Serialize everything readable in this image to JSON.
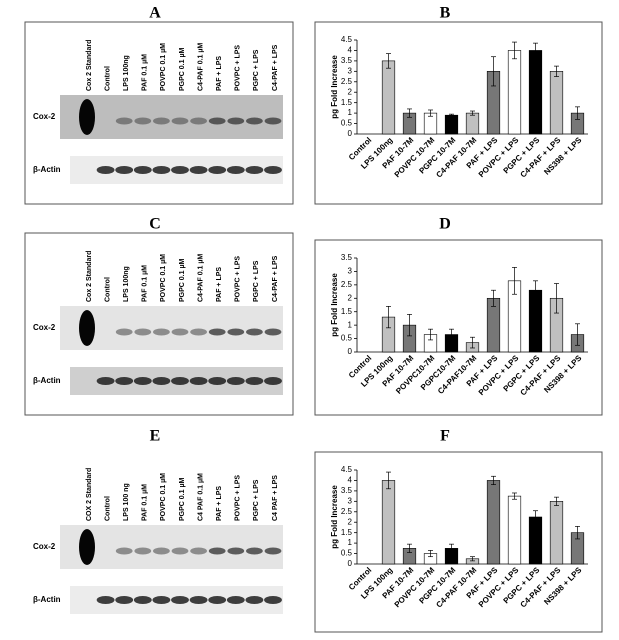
{
  "panel_labels": [
    "A",
    "B",
    "C",
    "D",
    "E",
    "F"
  ],
  "blots": [
    {
      "lanes": [
        "Cox 2 Standard",
        "Control",
        "LPS 100ng",
        "PAF 0.1 µM",
        "POVPC 0.1 µM",
        "PGPC 0.1 µM",
        "C4-PAF 0.1 µM",
        "PAF + LPS",
        "POVPC + LPS",
        "PGPC + LPS",
        "C4-PAF + LPS"
      ],
      "rows": [
        "Cox-2",
        "β-Actin"
      ]
    },
    {
      "lanes": [
        "Cox 2 Standard",
        "Control",
        "LPS 100ng",
        "PAF 0.1 µM",
        "POVPC 0.1 µM",
        "PGPC 0.1 µM",
        "C4-PAF 0.1 µM",
        "PAF + LPS",
        "POVPC + LPS",
        "PGPC + LPS",
        "C4-PAF + LPS"
      ],
      "rows": [
        "Cox-2",
        "β-Actin"
      ]
    },
    {
      "lanes": [
        "COX 2 Standard",
        "Control",
        "LPS 100 ng",
        "PAF 0.1 µM",
        "POVPC 0.1 µM",
        "PGPC 0.1 µM",
        "C4 PAF 0.1 µM",
        "PAF + LPS",
        "POVPC + LPS",
        "PGPC + LPS",
        "C4 PAF + LPS"
      ],
      "rows": [
        "Cox-2",
        "β-Actin"
      ]
    }
  ],
  "chart_data": [
    {
      "type": "bar",
      "ylabel": "pg Fold Increase",
      "categories": [
        "Control",
        "LPS 100ng",
        "PAF 10-7M",
        "POVPC 10-7M",
        "PGPC 10-7M",
        "C4-PAF 10-7M",
        "PAF + LPS",
        "POVPC + LPS",
        "PGPC + LPS",
        "C4-PAF + LPS",
        "NS398 + LPS"
      ],
      "values": [
        0,
        3.5,
        1.0,
        1.0,
        0.9,
        1.0,
        3.0,
        4.0,
        4.0,
        3.0,
        1.0
      ],
      "errors": [
        0,
        0.35,
        0.2,
        0.15,
        0.05,
        0.1,
        0.7,
        0.4,
        0.35,
        0.25,
        0.3
      ],
      "colors": [
        "#ffffff",
        "#c0c0c0",
        "#777777",
        "#ffffff",
        "#000000",
        "#c0c0c0",
        "#777777",
        "#ffffff",
        "#000000",
        "#c0c0c0",
        "#777777"
      ],
      "ylim": [
        0,
        4.5
      ],
      "yticks": [
        0,
        0.5,
        1,
        1.5,
        2,
        2.5,
        3,
        3.5,
        4,
        4.5
      ]
    },
    {
      "type": "bar",
      "ylabel": "pg Fold Increase",
      "categories": [
        "Control",
        "LPS 100ng",
        "PAF 10-7M",
        "POVPC10-7M",
        "PGPC10-7M",
        "C4-PAF10-7M",
        "PAF + LPS",
        "POVPC + LPS",
        "PGPC + LPS",
        "C4-PAF + LPS",
        "NS398 + LPS"
      ],
      "values": [
        0,
        1.3,
        1.0,
        0.65,
        0.65,
        0.35,
        2.0,
        2.65,
        2.3,
        2.0,
        0.65
      ],
      "errors": [
        0,
        0.4,
        0.4,
        0.2,
        0.2,
        0.2,
        0.3,
        0.5,
        0.35,
        0.55,
        0.4
      ],
      "colors": [
        "#ffffff",
        "#c0c0c0",
        "#777777",
        "#ffffff",
        "#000000",
        "#c0c0c0",
        "#777777",
        "#ffffff",
        "#000000",
        "#c0c0c0",
        "#777777"
      ],
      "ylim": [
        0,
        3.5
      ],
      "yticks": [
        0,
        0.5,
        1,
        1.5,
        2,
        2.5,
        3,
        3.5
      ]
    },
    {
      "type": "bar",
      "ylabel": "pg Fold Increase",
      "categories": [
        "Control",
        "LPS 100ng",
        "PAF 10-7M",
        "POVPC 10-7M",
        "PGPC 10-7M",
        "C4-PAF 10-7M",
        "PAF + LPS",
        "POVPC + LPS",
        "PGPC + LPS",
        "C4-PAF + LPS",
        "NS398 + LPS"
      ],
      "values": [
        0,
        4.0,
        0.75,
        0.5,
        0.75,
        0.25,
        4.0,
        3.25,
        2.25,
        3.0,
        1.5
      ],
      "errors": [
        0,
        0.4,
        0.2,
        0.15,
        0.2,
        0.1,
        0.2,
        0.15,
        0.3,
        0.2,
        0.3
      ],
      "colors": [
        "#ffffff",
        "#c0c0c0",
        "#777777",
        "#ffffff",
        "#000000",
        "#c0c0c0",
        "#777777",
        "#ffffff",
        "#000000",
        "#c0c0c0",
        "#777777"
      ],
      "ylim": [
        0,
        4.5
      ],
      "yticks": [
        0,
        0.5,
        1,
        1.5,
        2,
        2.5,
        3,
        3.5,
        4,
        4.5
      ]
    }
  ]
}
